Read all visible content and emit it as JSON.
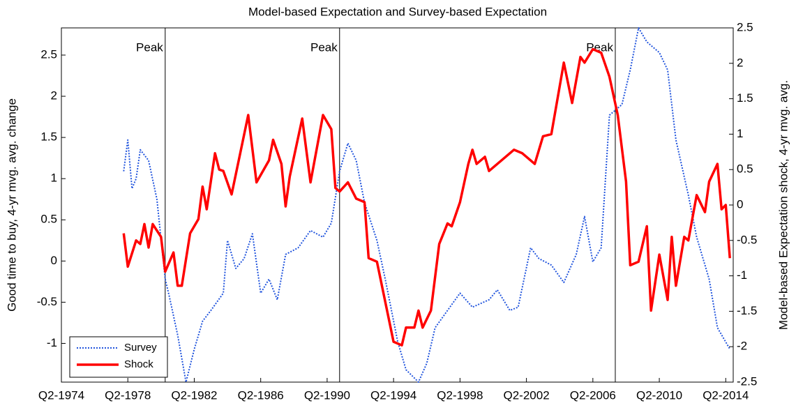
{
  "chart_data": {
    "type": "line",
    "title": "Model-based Expectation and Survey-based Expectation",
    "ylabel": "Good time to buy, 4-yr mvg. avg. change",
    "y2label": "Model-based Expectation shock, 4-yr mvg. avg.",
    "xlim": [
      1974.25,
      2014.7
    ],
    "xticks": [
      {
        "value": 1974.25,
        "label": "Q2-1974"
      },
      {
        "value": 1978.25,
        "label": "Q2-1978"
      },
      {
        "value": 1982.25,
        "label": "Q2-1982"
      },
      {
        "value": 1986.25,
        "label": "Q2-1986"
      },
      {
        "value": 1990.25,
        "label": "Q2-1990"
      },
      {
        "value": 1994.25,
        "label": "Q2-1994"
      },
      {
        "value": 1998.25,
        "label": "Q2-1998"
      },
      {
        "value": 2002.25,
        "label": "Q2-2002"
      },
      {
        "value": 2006.25,
        "label": "Q2-2006"
      },
      {
        "value": 2010.25,
        "label": "Q2-2010"
      },
      {
        "value": 2014.25,
        "label": "Q2-2014"
      }
    ],
    "ylim": [
      -1.47,
      2.83
    ],
    "yticks": [
      -1,
      -0.5,
      0,
      0.5,
      1,
      1.5,
      2,
      2.5
    ],
    "y2lim": [
      -2.5,
      2.5
    ],
    "y2ticks": [
      -2.5,
      -2,
      -1.5,
      -1,
      -0.5,
      0,
      0.5,
      1,
      1.5,
      2,
      2.5
    ],
    "legend": "lower left",
    "peaks": [
      {
        "x": 1980.5,
        "label": "Peak"
      },
      {
        "x": 1991.0,
        "label": "Peak"
      },
      {
        "x": 2007.6,
        "label": "Peak"
      }
    ],
    "series": [
      {
        "name": "Survey",
        "color": "#2255dd",
        "style": "dotted",
        "axis": "y",
        "x": [
          1978.0,
          1978.25,
          1978.5,
          1978.75,
          1979.0,
          1979.5,
          1980.0,
          1980.5,
          1980.75,
          1981.25,
          1981.75,
          1982.25,
          1982.75,
          1983.25,
          1984.0,
          1984.25,
          1984.75,
          1985.25,
          1985.75,
          1986.25,
          1986.75,
          1987.25,
          1987.75,
          1988.5,
          1989.25,
          1990.0,
          1990.5,
          1991.0,
          1991.5,
          1992.0,
          1992.5,
          1993.25,
          1993.75,
          1994.5,
          1995.0,
          1995.75,
          1996.25,
          1996.75,
          1997.5,
          1998.25,
          1999.0,
          2000.0,
          2000.5,
          2001.25,
          2001.75,
          2002.5,
          2003.0,
          2003.75,
          2004.5,
          2005.25,
          2005.75,
          2006.25,
          2006.75,
          2007.25,
          2008.0,
          2008.5,
          2009.0,
          2009.5,
          2010.25,
          2010.75,
          2011.25,
          2012.0,
          2012.5,
          2013.25,
          2013.75,
          2014.5
        ],
        "values": [
          1.09,
          1.47,
          0.88,
          1.0,
          1.35,
          1.22,
          0.75,
          -0.22,
          -0.43,
          -0.9,
          -1.47,
          -1.07,
          -0.73,
          -0.6,
          -0.39,
          0.25,
          -0.09,
          0.03,
          0.33,
          -0.39,
          -0.22,
          -0.47,
          0.08,
          0.16,
          0.37,
          0.29,
          0.46,
          1.09,
          1.43,
          1.22,
          0.71,
          0.25,
          -0.22,
          -0.98,
          -1.32,
          -1.47,
          -1.24,
          -0.81,
          -0.6,
          -0.39,
          -0.56,
          -0.47,
          -0.35,
          -0.6,
          -0.56,
          0.16,
          0.03,
          -0.05,
          -0.26,
          0.08,
          0.54,
          -0.01,
          0.16,
          1.77,
          1.9,
          2.32,
          2.83,
          2.66,
          2.53,
          2.32,
          1.47,
          0.8,
          0.29,
          -0.22,
          -0.81,
          -1.07
        ]
      },
      {
        "name": "Shock",
        "color": "#ff0000",
        "style": "solid",
        "axis": "y2",
        "x": [
          1978.0,
          1978.25,
          1978.75,
          1979.0,
          1979.25,
          1979.5,
          1979.75,
          1980.25,
          1980.5,
          1981.0,
          1981.25,
          1981.5,
          1982.0,
          1982.5,
          1982.75,
          1983.0,
          1983.5,
          1983.75,
          1984.0,
          1984.5,
          1985.5,
          1986.0,
          1986.75,
          1987.0,
          1987.5,
          1987.75,
          1988.0,
          1988.75,
          1989.25,
          1990.0,
          1990.5,
          1990.75,
          1991.0,
          1991.5,
          1992.0,
          1992.5,
          1992.75,
          1993.25,
          1994.25,
          1994.75,
          1995.0,
          1995.5,
          1995.75,
          1996.0,
          1996.5,
          1997.0,
          1997.5,
          1997.75,
          1998.25,
          1998.75,
          1999.0,
          1999.25,
          1999.75,
          2000.0,
          2000.5,
          2001.5,
          2002.0,
          2002.75,
          2003.25,
          2003.75,
          2004.5,
          2005.0,
          2005.5,
          2005.75,
          2006.25,
          2006.75,
          2007.25,
          2007.75,
          2008.25,
          2008.5,
          2009.0,
          2009.5,
          2009.75,
          2010.25,
          2010.75,
          2011.0,
          2011.25,
          2011.75,
          2012.0,
          2012.5,
          2013.0,
          2013.25,
          2013.75,
          2014.0,
          2014.25,
          2014.5
        ],
        "values": [
          -0.4,
          -0.87,
          -0.5,
          -0.55,
          -0.27,
          -0.6,
          -0.27,
          -0.45,
          -0.94,
          -0.67,
          -1.14,
          -1.14,
          -0.4,
          -0.2,
          0.26,
          -0.06,
          0.73,
          0.5,
          0.48,
          0.15,
          1.27,
          0.32,
          0.63,
          0.92,
          0.58,
          -0.02,
          0.4,
          1.22,
          0.32,
          1.27,
          1.07,
          0.24,
          0.19,
          0.32,
          0.09,
          0.04,
          -0.75,
          -0.8,
          -1.93,
          -1.98,
          -1.73,
          -1.73,
          -1.49,
          -1.73,
          -1.49,
          -0.55,
          -0.26,
          -0.3,
          0.04,
          0.58,
          0.78,
          0.58,
          0.68,
          0.48,
          0.58,
          0.78,
          0.73,
          0.58,
          0.97,
          1.0,
          2.01,
          1.44,
          2.09,
          2.01,
          2.2,
          2.15,
          1.81,
          1.27,
          0.33,
          -0.85,
          -0.8,
          -0.3,
          -1.49,
          -0.7,
          -1.34,
          -0.45,
          -1.14,
          -0.45,
          -0.5,
          0.14,
          -0.1,
          0.33,
          0.58,
          -0.06,
          0.0,
          -0.75
        ]
      }
    ]
  }
}
